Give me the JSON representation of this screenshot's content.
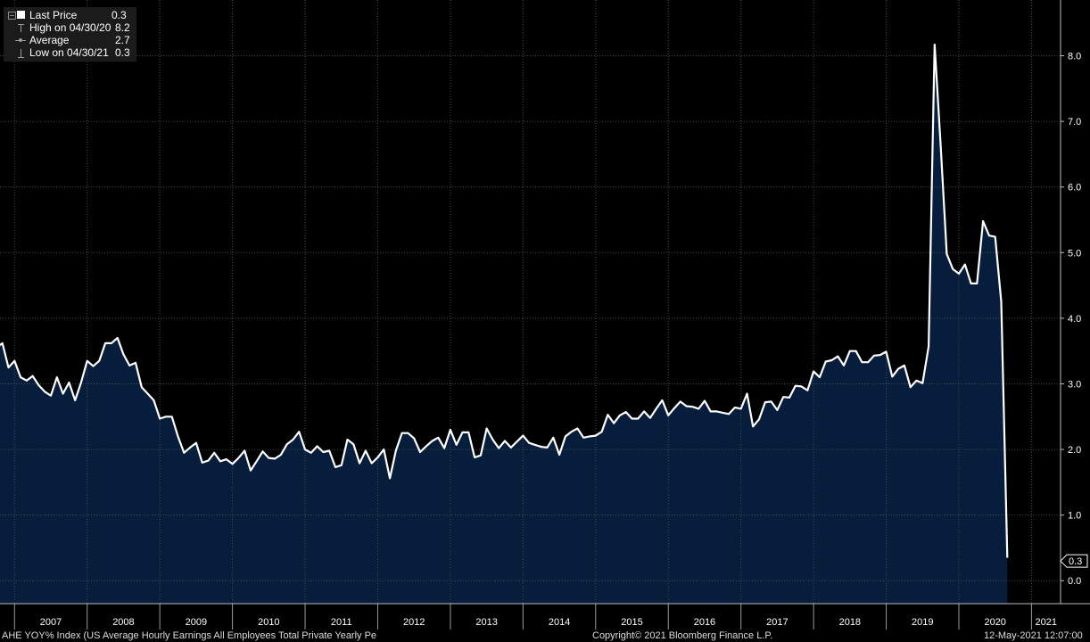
{
  "legend": {
    "collapse_icon": "minus-box-icon",
    "items": [
      {
        "icon": "square-icon",
        "label": "Last Price",
        "value": "0.3"
      },
      {
        "icon": "high-marker-icon",
        "label": "High on 04/30/20",
        "value": "8.2"
      },
      {
        "icon": "average-marker-icon",
        "label": "Average",
        "value": "2.7"
      },
      {
        "icon": "low-marker-icon",
        "label": "Low on 04/30/21",
        "value": "0.3"
      }
    ]
  },
  "colors": {
    "background": "#000000",
    "line": "#ffffff",
    "area_fill": "#061e3b",
    "grid": "#4a4a4a"
  },
  "footer": {
    "series_description": "AHE YOY% Index (US Average Hourly Earnings All Employees Total Private Yearly Pe",
    "copyright": "Copyright© 2021 Bloomberg Finance L.P.",
    "timestamp": "12-May-2021 12:07:00"
  },
  "chart_data": {
    "type": "area",
    "x_ticks": [
      "2007",
      "2008",
      "2009",
      "2010",
      "2011",
      "2012",
      "2013",
      "2014",
      "2015",
      "2016",
      "2017",
      "2018",
      "2019",
      "2020",
      "2021"
    ],
    "y_ticks": [
      "0.0",
      "1.0",
      "2.0",
      "3.0",
      "4.0",
      "5.0",
      "6.0",
      "7.0",
      "8.0"
    ],
    "ylim": [
      -0.35,
      8.85
    ],
    "xlim_year": [
      2006.8,
      2021.4
    ],
    "last_value_label": "0.3",
    "grid": true,
    "axis_position": "right",
    "series": [
      {
        "x_start": "2006-08",
        "frequency": "monthly",
        "values": [
          3.42,
          3.08,
          3.55,
          3.62,
          3.25,
          3.35,
          3.1,
          3.05,
          3.12,
          2.98,
          2.88,
          2.82,
          3.1,
          2.85,
          3.02,
          2.75,
          3.02,
          3.35,
          3.27,
          3.35,
          3.62,
          3.62,
          3.7,
          3.45,
          3.28,
          3.32,
          2.95,
          2.85,
          2.75,
          2.47,
          2.5,
          2.5,
          2.2,
          1.95,
          2.03,
          2.1,
          1.8,
          1.83,
          1.95,
          1.82,
          1.85,
          1.78,
          1.87,
          1.98,
          1.68,
          1.82,
          1.97,
          1.87,
          1.86,
          1.92,
          2.08,
          2.15,
          2.27,
          2.0,
          1.95,
          2.05,
          1.96,
          1.98,
          1.73,
          1.76,
          2.15,
          2.08,
          1.79,
          1.98,
          1.79,
          1.88,
          2.0,
          1.56,
          1.98,
          2.25,
          2.25,
          2.17,
          1.96,
          2.05,
          2.13,
          2.18,
          2.02,
          2.3,
          2.07,
          2.26,
          2.26,
          1.88,
          1.91,
          2.32,
          2.15,
          2.02,
          2.13,
          2.03,
          2.12,
          2.21,
          2.1,
          2.07,
          2.04,
          2.03,
          2.18,
          1.92,
          2.2,
          2.27,
          2.32,
          2.18,
          2.2,
          2.21,
          2.27,
          2.53,
          2.4,
          2.52,
          2.57,
          2.47,
          2.47,
          2.58,
          2.48,
          2.62,
          2.75,
          2.52,
          2.63,
          2.73,
          2.66,
          2.65,
          2.62,
          2.74,
          2.58,
          2.58,
          2.56,
          2.54,
          2.64,
          2.62,
          2.85,
          2.35,
          2.46,
          2.72,
          2.73,
          2.6,
          2.8,
          2.79,
          2.97,
          2.96,
          2.9,
          3.19,
          3.1,
          3.34,
          3.36,
          3.42,
          3.28,
          3.5,
          3.5,
          3.33,
          3.33,
          3.43,
          3.44,
          3.49,
          3.11,
          3.23,
          3.28,
          2.95,
          3.05,
          3.01,
          3.57,
          8.17,
          6.63,
          4.98,
          4.75,
          4.68,
          4.82,
          4.53,
          4.53,
          5.48,
          5.26,
          5.24,
          4.25,
          0.35
        ]
      }
    ]
  }
}
